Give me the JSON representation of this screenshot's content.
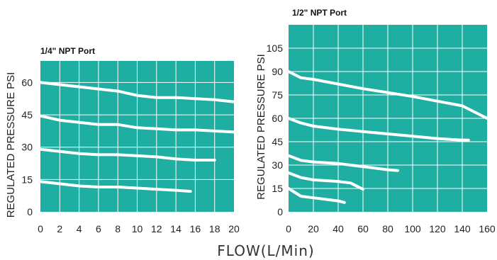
{
  "xlabel": "FLOW(L/Min)",
  "colors": {
    "plot_background": "#1eaea2",
    "curves": "#ffffff",
    "text": "#222222"
  },
  "chart_data": [
    {
      "type": "line",
      "title": "1/4\" NPT Port",
      "ylabel": "REGULATED PRESSURE PSI",
      "xlim": [
        0,
        20
      ],
      "ylim": [
        0,
        70
      ],
      "x_ticks": [
        "0",
        "2",
        "4",
        "6",
        "8",
        "10",
        "12",
        "14",
        "16",
        "18",
        "20"
      ],
      "y_ticks": [
        "0",
        "15",
        "30",
        "45",
        "60"
      ],
      "grid": true,
      "series": [
        {
          "x": [
            0,
            2,
            4,
            6,
            8,
            10,
            12,
            14,
            16,
            18,
            20
          ],
          "y": [
            60,
            59,
            58,
            57,
            56,
            54,
            53,
            53,
            52.5,
            52,
            51
          ]
        },
        {
          "x": [
            0,
            2,
            4,
            6,
            8,
            10,
            12,
            14,
            16,
            18,
            20
          ],
          "y": [
            44.5,
            42.5,
            41.5,
            40.5,
            40.5,
            39,
            38.5,
            38,
            38,
            37.5,
            37
          ]
        },
        {
          "x": [
            0,
            2,
            4,
            6,
            8,
            10,
            12,
            14,
            16,
            18
          ],
          "y": [
            29,
            28,
            27,
            26.5,
            26.5,
            26,
            25.5,
            24.5,
            24,
            24
          ]
        },
        {
          "x": [
            0,
            2,
            4,
            6,
            8,
            10,
            12,
            14,
            15.5
          ],
          "y": [
            14,
            13,
            12,
            11.5,
            11.5,
            11,
            10.5,
            10,
            9.5
          ]
        }
      ]
    },
    {
      "type": "line",
      "title": "1/2\" NPT Port",
      "ylabel": "REGULATED PRESSURE PSI",
      "xlim": [
        0,
        160
      ],
      "ylim": [
        0,
        120
      ],
      "x_ticks": [
        "0",
        "20",
        "40",
        "60",
        "80",
        "100",
        "120",
        "140",
        "160"
      ],
      "y_ticks": [
        "0",
        "15",
        "30",
        "45",
        "60",
        "75",
        "90",
        "105"
      ],
      "grid": true,
      "series": [
        {
          "x": [
            0,
            10,
            20,
            40,
            60,
            80,
            100,
            120,
            140,
            160
          ],
          "y": [
            90,
            86,
            85,
            82,
            79,
            76.5,
            74,
            71,
            68,
            60
          ]
        },
        {
          "x": [
            0,
            10,
            20,
            40,
            60,
            80,
            100,
            120,
            140,
            145
          ],
          "y": [
            60,
            57,
            55,
            53,
            51.5,
            50,
            48.5,
            47,
            46,
            46
          ]
        },
        {
          "x": [
            0,
            10,
            20,
            40,
            60,
            80,
            88
          ],
          "y": [
            36,
            33,
            32,
            31,
            29,
            27,
            26.5
          ]
        },
        {
          "x": [
            0,
            10,
            20,
            40,
            50,
            60
          ],
          "y": [
            25,
            22,
            20.5,
            19.5,
            18.5,
            14.5
          ]
        },
        {
          "x": [
            0,
            10,
            20,
            30,
            40,
            45
          ],
          "y": [
            15,
            10,
            9,
            8,
            7,
            6
          ]
        }
      ]
    }
  ]
}
